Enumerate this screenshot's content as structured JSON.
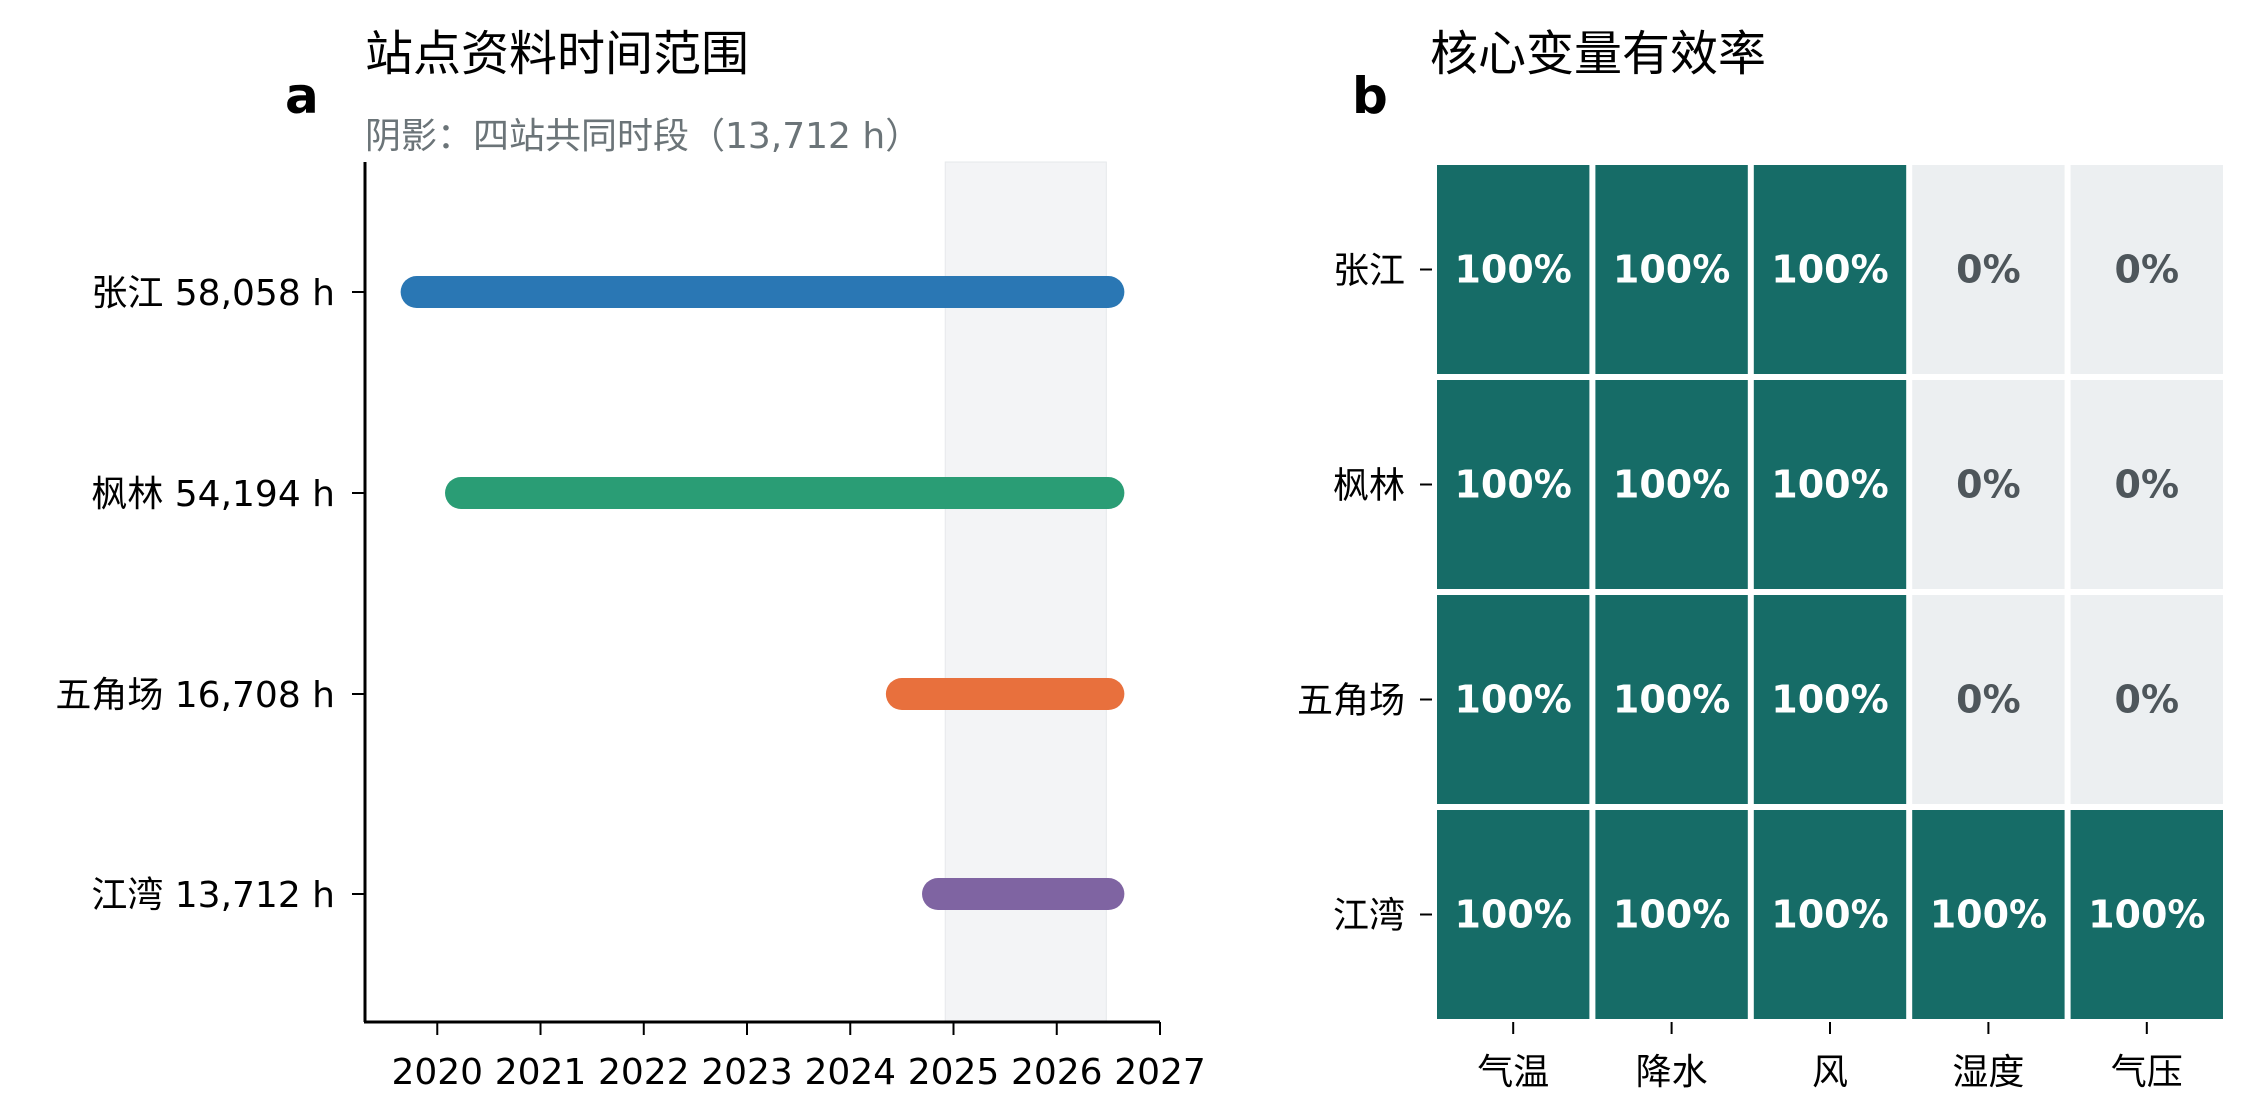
{
  "chart_data": [
    {
      "type": "bar",
      "panel": "a",
      "title": "站点资料时间范围",
      "subtitle": "阴影：四站共同时段（13,712 h）",
      "stations": [
        {
          "name": "张江",
          "hours": "58,058 h",
          "start": 2019.8,
          "end": 2026.5,
          "color": "#2a77b4"
        },
        {
          "name": "枫林",
          "hours": "54,194 h",
          "start": 2020.23,
          "end": 2026.5,
          "color": "#2a9d75"
        },
        {
          "name": "五角场",
          "hours": "16,708 h",
          "start": 2024.5,
          "end": 2026.5,
          "color": "#e8703d"
        },
        {
          "name": "江湾",
          "hours": "13,712 h",
          "start": 2024.85,
          "end": 2026.5,
          "color": "#7f64a2"
        }
      ],
      "shade_range": [
        2024.92,
        2026.48
      ],
      "shade_color": "#f3f4f6",
      "xlim": [
        2019.3,
        2027
      ],
      "x_ticks": [
        "2020",
        "2021",
        "2022",
        "2023",
        "2024",
        "2025",
        "2026",
        "2027"
      ]
    },
    {
      "type": "heatmap",
      "panel": "b",
      "title": "核心变量有效率",
      "rows": [
        "张江",
        "枫林",
        "五角场",
        "江湾"
      ],
      "columns": [
        "气温",
        "降水",
        "风",
        "湿度",
        "气压"
      ],
      "values": [
        [
          100,
          100,
          100,
          0,
          0
        ],
        [
          100,
          100,
          100,
          0,
          0
        ],
        [
          100,
          100,
          100,
          0,
          0
        ],
        [
          100,
          100,
          100,
          100,
          100
        ]
      ],
      "labels": [
        [
          "100%",
          "100%",
          "100%",
          "0%",
          "0%"
        ],
        [
          "100%",
          "100%",
          "100%",
          "0%",
          "0%"
        ],
        [
          "100%",
          "100%",
          "100%",
          "0%",
          "0%"
        ],
        [
          "100%",
          "100%",
          "100%",
          "100%",
          "100%"
        ]
      ],
      "high_color": "#166c67",
      "low_color": "#eceff1",
      "high_text_color": "#ffffff",
      "low_text_color": "#4e565b"
    }
  ]
}
